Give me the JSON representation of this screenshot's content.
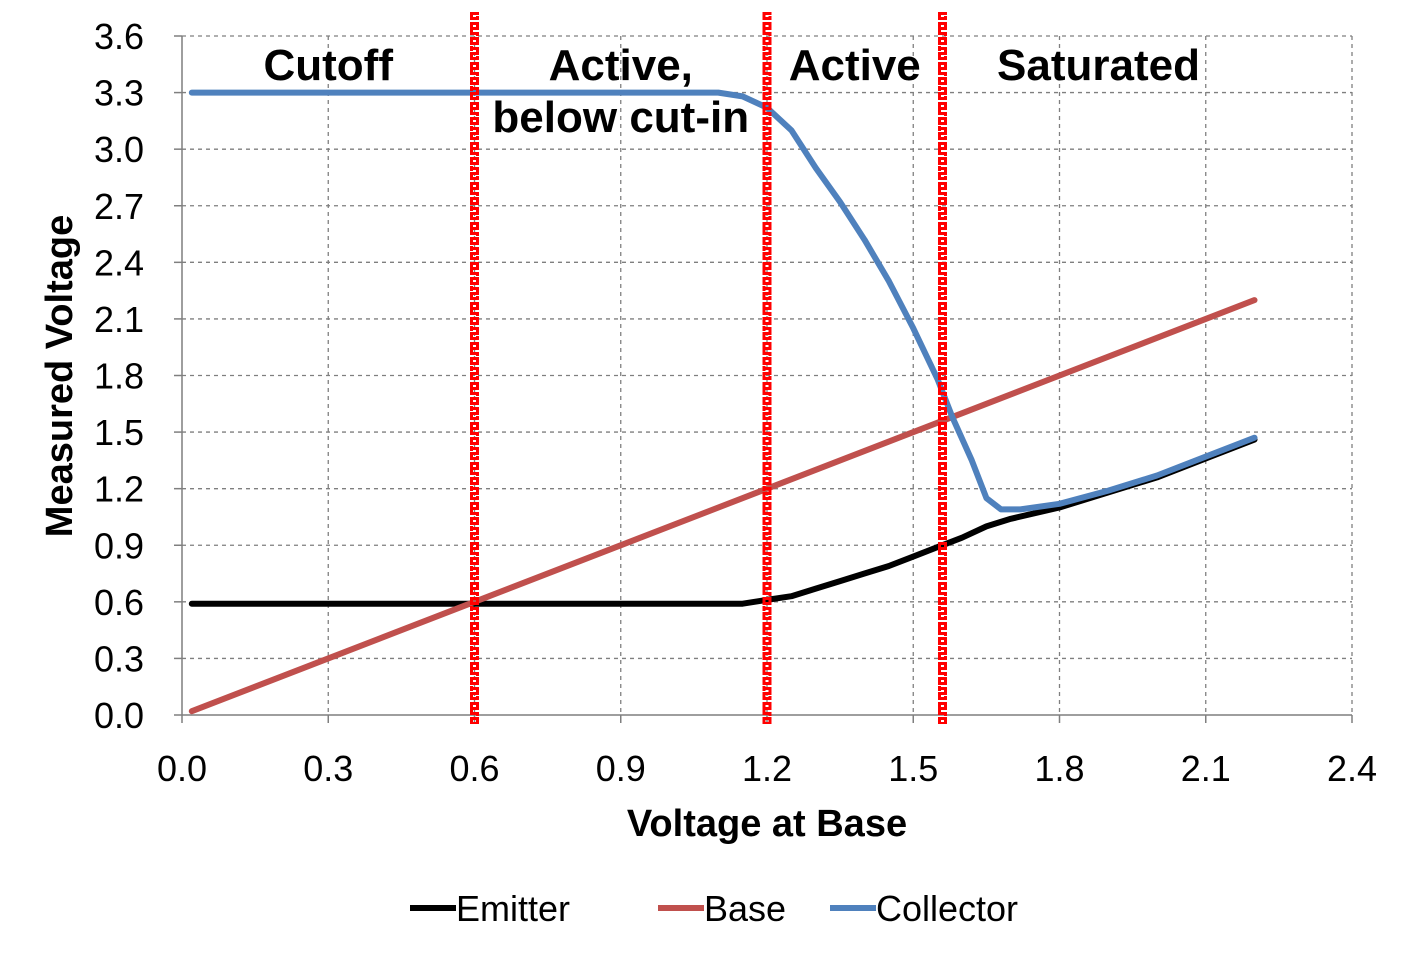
{
  "chart_data": {
    "type": "line",
    "title": "",
    "xlabel": "Voltage at Base",
    "ylabel": "Measured Voltage",
    "xlim": [
      0.0,
      2.4
    ],
    "ylim": [
      0.0,
      3.6
    ],
    "x_ticks": [
      "0.0",
      "0.3",
      "0.6",
      "0.9",
      "1.2",
      "1.5",
      "1.8",
      "2.1",
      "2.4"
    ],
    "y_ticks": [
      "0.0",
      "0.3",
      "0.6",
      "0.9",
      "1.2",
      "1.5",
      "1.8",
      "2.1",
      "2.4",
      "2.7",
      "3.0",
      "3.3",
      "3.6"
    ],
    "grid": true,
    "legend_position": "bottom",
    "series": [
      {
        "name": "Emitter",
        "color": "#000000",
        "points": [
          [
            0.02,
            0.59
          ],
          [
            0.3,
            0.59
          ],
          [
            0.6,
            0.59
          ],
          [
            0.9,
            0.59
          ],
          [
            1.1,
            0.59
          ],
          [
            1.15,
            0.59
          ],
          [
            1.2,
            0.61
          ],
          [
            1.25,
            0.63
          ],
          [
            1.3,
            0.67
          ],
          [
            1.35,
            0.71
          ],
          [
            1.4,
            0.75
          ],
          [
            1.45,
            0.79
          ],
          [
            1.5,
            0.84
          ],
          [
            1.55,
            0.89
          ],
          [
            1.6,
            0.94
          ],
          [
            1.65,
            1.0
          ],
          [
            1.7,
            1.04
          ],
          [
            1.8,
            1.1
          ],
          [
            1.9,
            1.18
          ],
          [
            2.0,
            1.26
          ],
          [
            2.1,
            1.36
          ],
          [
            2.2,
            1.46
          ]
        ]
      },
      {
        "name": "Base",
        "color": "#C0504D",
        "points": [
          [
            0.02,
            0.02
          ],
          [
            2.2,
            2.2
          ]
        ]
      },
      {
        "name": "Collector",
        "color": "#4F81BD",
        "points": [
          [
            0.02,
            3.3
          ],
          [
            0.6,
            3.3
          ],
          [
            1.0,
            3.3
          ],
          [
            1.1,
            3.3
          ],
          [
            1.15,
            3.28
          ],
          [
            1.2,
            3.22
          ],
          [
            1.25,
            3.1
          ],
          [
            1.3,
            2.9
          ],
          [
            1.35,
            2.72
          ],
          [
            1.4,
            2.52
          ],
          [
            1.45,
            2.3
          ],
          [
            1.5,
            2.05
          ],
          [
            1.55,
            1.78
          ],
          [
            1.58,
            1.58
          ],
          [
            1.62,
            1.35
          ],
          [
            1.65,
            1.15
          ],
          [
            1.68,
            1.09
          ],
          [
            1.72,
            1.09
          ],
          [
            1.8,
            1.12
          ],
          [
            1.9,
            1.19
          ],
          [
            2.0,
            1.27
          ],
          [
            2.1,
            1.37
          ],
          [
            2.2,
            1.47
          ]
        ]
      }
    ],
    "regions": [
      {
        "lines": [
          "Cutoff"
        ],
        "x": 0.3
      },
      {
        "lines": [
          "Active,",
          "below cut-in"
        ],
        "x": 0.9
      },
      {
        "lines": [
          "Active"
        ],
        "x": 1.38
      },
      {
        "lines": [
          "Saturated"
        ],
        "x": 1.88
      }
    ],
    "boundaries": [
      0.6,
      1.2,
      1.56
    ],
    "boundary_color": "#FF0000"
  }
}
